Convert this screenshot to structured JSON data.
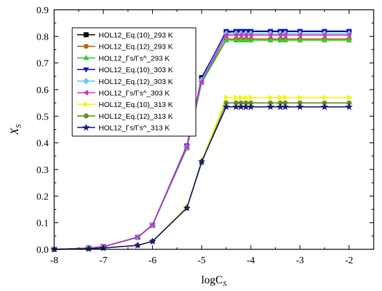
{
  "chart_data": {
    "type": "line",
    "xlabel": "logC",
    "xlabel_sub": "S",
    "ylabel": "X",
    "ylabel_sub": "S",
    "xlim": [
      -8,
      -1.5
    ],
    "ylim": [
      0,
      0.9
    ],
    "xticks": [
      -8,
      -7,
      -6,
      -5,
      -4,
      -3,
      -2
    ],
    "xtick_labels": [
      "-8",
      "-7",
      "-6",
      "-5",
      "-4",
      "-3",
      "-2"
    ],
    "yticks": [
      0.0,
      0.1,
      0.2,
      0.3,
      0.4,
      0.5,
      0.6,
      0.7,
      0.8,
      0.9
    ],
    "ytick_labels": [
      "0.0",
      "0.1",
      "0.2",
      "0.3",
      "0.4",
      "0.5",
      "0.6",
      "0.7",
      "0.8",
      "0.9"
    ],
    "grid": false,
    "legend_position": "top-left",
    "series": [
      {
        "name": "HOL12_Eq.(10)_293 K",
        "color": "#000000",
        "marker": "square",
        "x": [
          -8,
          -7.3,
          -7,
          -6.3,
          -6,
          -5.3,
          -5,
          -4.5,
          -4.3,
          -4.2,
          -4.1,
          -4,
          -3.6,
          -3.4,
          -3.3,
          -3,
          -2.5,
          -2
        ],
        "y": [
          0.0,
          0.005,
          0.01,
          0.045,
          0.09,
          0.385,
          0.645,
          0.815,
          0.818,
          0.818,
          0.818,
          0.818,
          0.818,
          0.818,
          0.818,
          0.818,
          0.818,
          0.818
        ]
      },
      {
        "name": "HOL12_Eq.(12)_293 K",
        "color": "#b5651d",
        "marker": "circle",
        "x": [
          -8,
          -7.3,
          -7,
          -6.3,
          -6,
          -5.3,
          -5,
          -4.5,
          -4.3,
          -4.2,
          -4.1,
          -4,
          -3.6,
          -3.4,
          -3.3,
          -3,
          -2.5,
          -2
        ],
        "y": [
          0.0,
          0.005,
          0.01,
          0.045,
          0.09,
          0.38,
          0.63,
          0.79,
          0.79,
          0.79,
          0.79,
          0.79,
          0.79,
          0.79,
          0.79,
          0.79,
          0.79,
          0.79
        ]
      },
      {
        "name": "HOL12_Γs/Γs^_293 K",
        "color": "#33cc33",
        "marker": "triangle-up",
        "x": [
          -8,
          -7.3,
          -7,
          -6.3,
          -6,
          -5.3,
          -5,
          -4.5,
          -4.3,
          -4.2,
          -4.1,
          -4,
          -3.6,
          -3.4,
          -3.3,
          -3,
          -2.5,
          -2
        ],
        "y": [
          0.0,
          0.005,
          0.01,
          0.045,
          0.09,
          0.38,
          0.625,
          0.785,
          0.785,
          0.785,
          0.785,
          0.785,
          0.785,
          0.785,
          0.785,
          0.785,
          0.785,
          0.785
        ]
      },
      {
        "name": "HOL12_Eq.(10)_303 K",
        "color": "#1a1acc",
        "marker": "triangle-down",
        "x": [
          -8,
          -7.3,
          -7,
          -6.3,
          -6,
          -5.3,
          -5,
          -4.5,
          -4.3,
          -4.2,
          -4.1,
          -4,
          -3.6,
          -3.4,
          -3.3,
          -3,
          -2.5,
          -2
        ],
        "y": [
          0.0,
          0.005,
          0.01,
          0.046,
          0.092,
          0.39,
          0.64,
          0.82,
          0.82,
          0.82,
          0.82,
          0.82,
          0.82,
          0.82,
          0.82,
          0.82,
          0.82,
          0.82
        ]
      },
      {
        "name": "HOL12_Eq.(12)_303 K",
        "color": "#66ccee",
        "marker": "diamond",
        "x": [
          -8,
          -7.3,
          -7,
          -6.3,
          -6,
          -5.3,
          -5,
          -4.5,
          -4.3,
          -4.2,
          -4.1,
          -4,
          -3.6,
          -3.4,
          -3.3,
          -3,
          -2.5,
          -2
        ],
        "y": [
          0.0,
          0.005,
          0.01,
          0.046,
          0.092,
          0.385,
          0.635,
          0.81,
          0.81,
          0.81,
          0.81,
          0.81,
          0.81,
          0.81,
          0.81,
          0.81,
          0.81,
          0.81
        ]
      },
      {
        "name": "HOL12_Γs/Γs^_303 K",
        "color": "#cc33cc",
        "marker": "triangle-left",
        "x": [
          -8,
          -7.3,
          -7,
          -6.3,
          -6,
          -5.3,
          -5,
          -4.5,
          -4.3,
          -4.2,
          -4.1,
          -4,
          -3.6,
          -3.4,
          -3.3,
          -3,
          -2.5,
          -2
        ],
        "y": [
          0.0,
          0.005,
          0.01,
          0.046,
          0.092,
          0.385,
          0.63,
          0.805,
          0.805,
          0.805,
          0.805,
          0.805,
          0.805,
          0.805,
          0.805,
          0.805,
          0.805,
          0.805
        ]
      },
      {
        "name": "HOL12_Eq.(10)_313 K",
        "color": "#f5f500",
        "marker": "triangle-right",
        "x": [
          -8,
          -7.3,
          -7,
          -6.3,
          -6,
          -5.3,
          -5,
          -4.5,
          -4.3,
          -4.2,
          -4.1,
          -4,
          -3.6,
          -3.4,
          -3.3,
          -3,
          -2.5,
          -2
        ],
        "y": [
          0.0,
          0.002,
          0.005,
          0.015,
          0.03,
          0.16,
          0.33,
          0.57,
          0.57,
          0.57,
          0.57,
          0.57,
          0.57,
          0.57,
          0.57,
          0.57,
          0.57,
          0.57
        ]
      },
      {
        "name": "HOL12_Eq.(12)_313 K",
        "color": "#6b8e23",
        "marker": "circle",
        "x": [
          -8,
          -7.3,
          -7,
          -6.3,
          -6,
          -5.3,
          -5,
          -4.5,
          -4.3,
          -4.2,
          -4.1,
          -4,
          -3.6,
          -3.4,
          -3.3,
          -3,
          -2.5,
          -2
        ],
        "y": [
          0.0,
          0.002,
          0.005,
          0.015,
          0.03,
          0.155,
          0.325,
          0.55,
          0.55,
          0.55,
          0.55,
          0.55,
          0.55,
          0.55,
          0.55,
          0.55,
          0.55,
          0.55
        ]
      },
      {
        "name": "HOL12_Γs/Γs^_313 K",
        "color": "#1a1a80",
        "marker": "star",
        "x": [
          -8,
          -7.3,
          -7,
          -6.3,
          -6,
          -5.3,
          -5,
          -4.5,
          -4.3,
          -4.2,
          -4.1,
          -4,
          -3.6,
          -3.4,
          -3.3,
          -3,
          -2.5,
          -2
        ],
        "y": [
          0.0,
          0.002,
          0.005,
          0.015,
          0.03,
          0.155,
          0.33,
          0.535,
          0.535,
          0.535,
          0.535,
          0.535,
          0.535,
          0.535,
          0.535,
          0.535,
          0.535,
          0.535
        ]
      }
    ]
  }
}
